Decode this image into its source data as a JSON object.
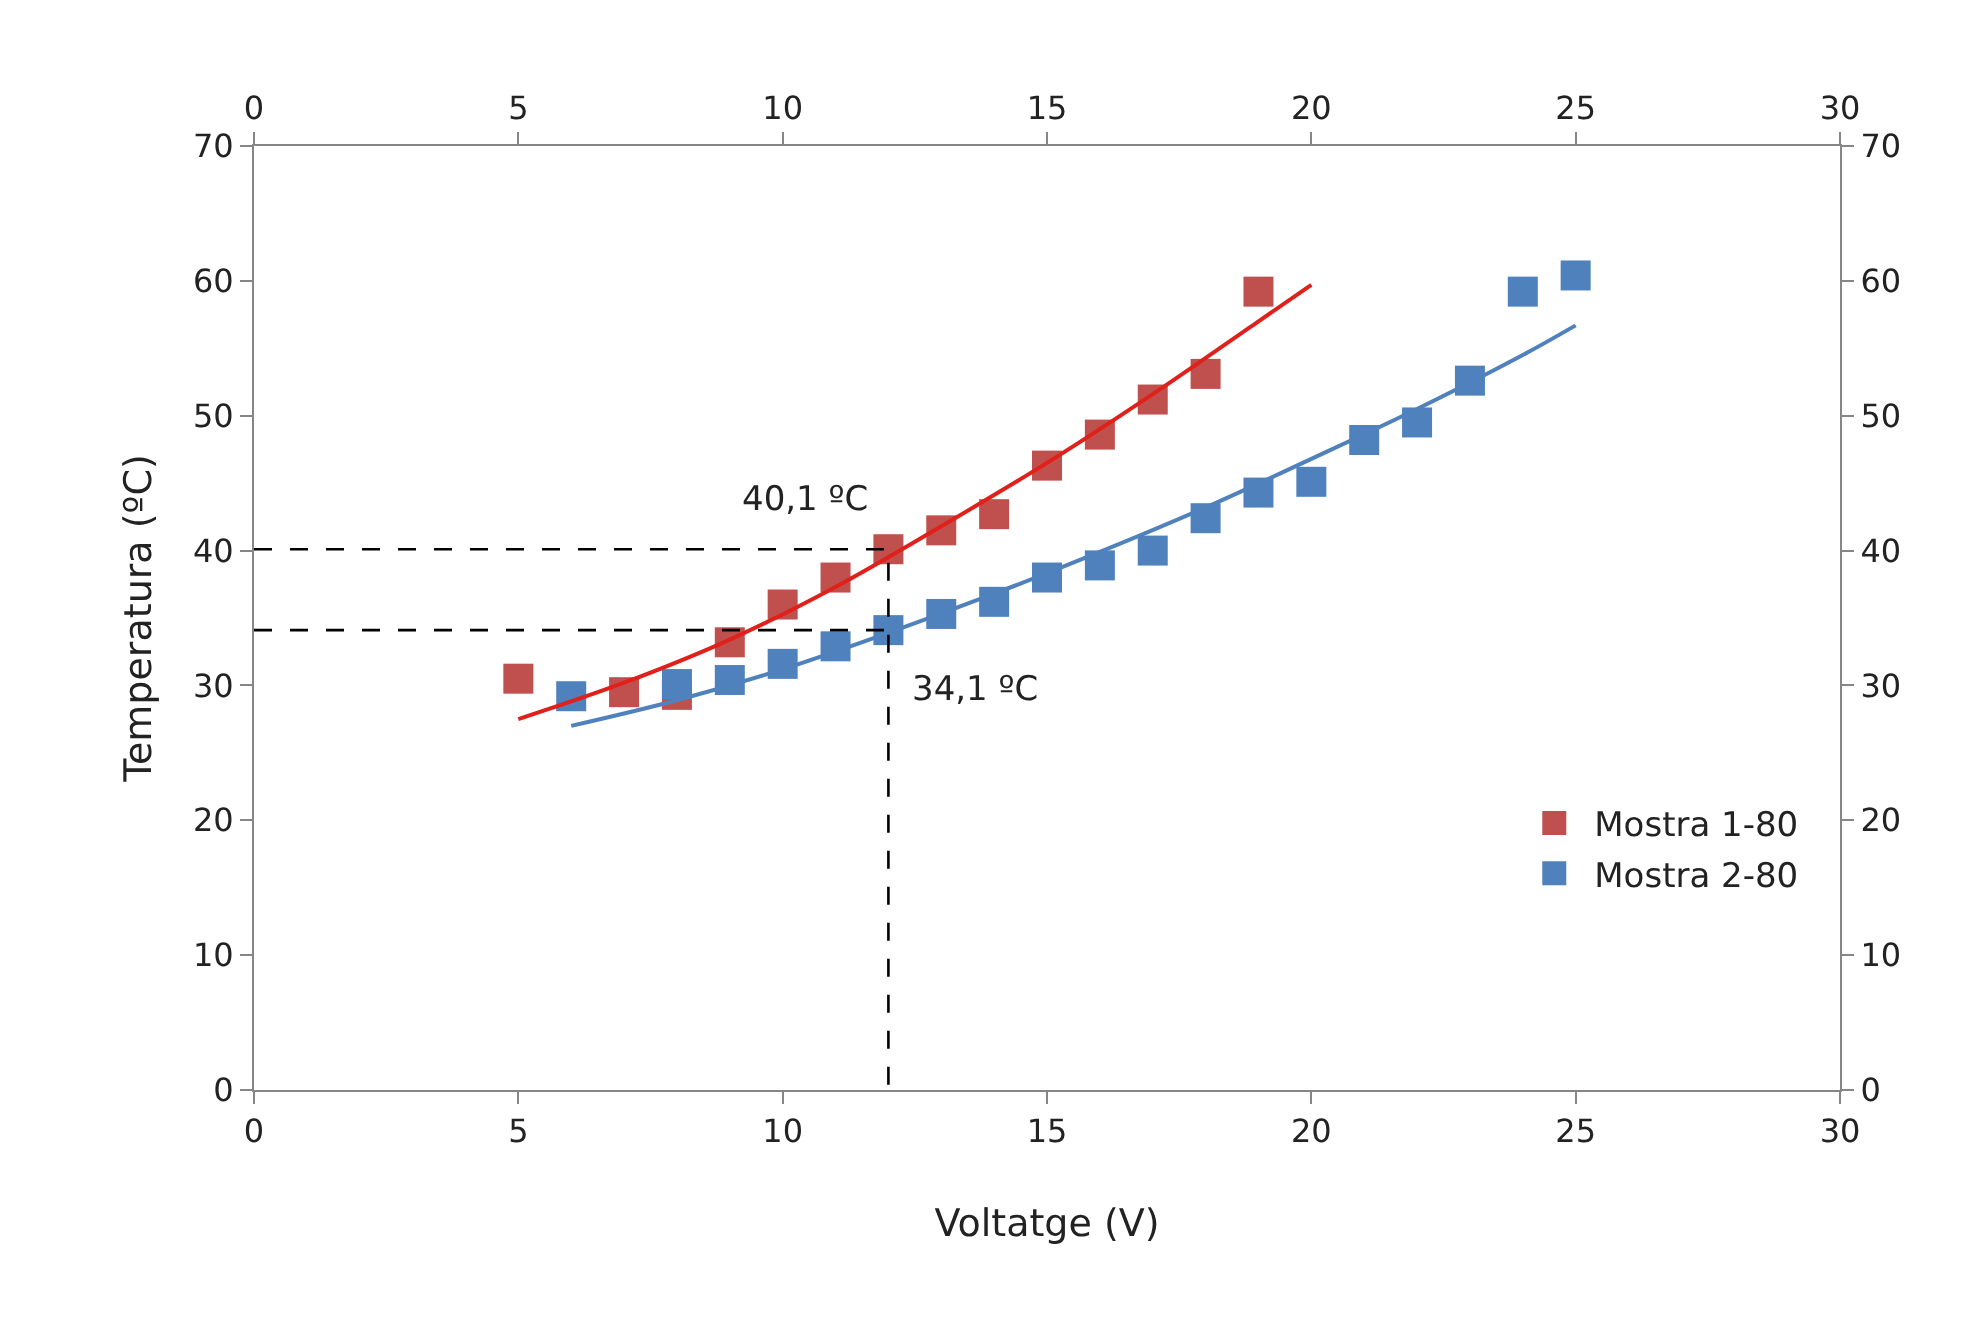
{
  "chart_data": {
    "type": "scatter",
    "xlabel": "Voltatge (V)",
    "ylabel": "Temperatura (ºC)",
    "xlim": [
      0,
      30
    ],
    "xticks": [
      0,
      5,
      10,
      15,
      20,
      25,
      30
    ],
    "x2lim": [
      0,
      30
    ],
    "x2ticks": [
      0,
      5,
      10,
      15,
      20,
      25,
      30
    ],
    "ylim": [
      0,
      70
    ],
    "yticks": [
      0,
      10,
      20,
      30,
      40,
      50,
      60,
      70
    ],
    "y2lim": [
      0,
      70
    ],
    "y2ticks": [
      0,
      10,
      20,
      30,
      40,
      50,
      60,
      70
    ],
    "legend": "bottom right",
    "series": [
      {
        "name": "Mostra 1-80",
        "color": "#c0504d",
        "marker": "square",
        "x": [
          5,
          7,
          8,
          9,
          10,
          11,
          12,
          13,
          14,
          15,
          16,
          17,
          18,
          19
        ],
        "values": [
          30.5,
          29.5,
          29.3,
          33.2,
          36.0,
          38.0,
          40.1,
          41.5,
          42.7,
          46.3,
          48.6,
          51.2,
          53.1,
          59.2
        ]
      },
      {
        "name": "Mostra 2-80",
        "color": "#4f81bd",
        "marker": "square",
        "x": [
          6,
          8,
          9,
          10,
          11,
          12,
          13,
          14,
          15,
          16,
          17,
          18,
          19,
          20,
          21,
          22,
          23,
          24,
          25
        ],
        "values": [
          29.2,
          30.1,
          30.4,
          31.6,
          32.9,
          34.1,
          35.3,
          36.2,
          38.0,
          38.9,
          40.0,
          42.4,
          44.3,
          45.1,
          48.2,
          49.5,
          52.6,
          59.2,
          60.4
        ]
      },
      {
        "type": "line",
        "marker": "none",
        "color": "#e0201b",
        "x": [
          5,
          7,
          9,
          11,
          13,
          15,
          17,
          19,
          20
        ],
        "values": [
          27.5,
          30.2,
          33.4,
          37.3,
          41.8,
          46.5,
          51.6,
          57.0,
          59.7
        ]
      },
      {
        "type": "line",
        "marker": "none",
        "color": "#4f81bd",
        "x": [
          6,
          8,
          10,
          12,
          14,
          16,
          18,
          20,
          22,
          24,
          25
        ],
        "values": [
          27.0,
          28.9,
          31.2,
          33.9,
          36.8,
          39.9,
          43.2,
          46.8,
          50.5,
          54.5,
          56.7
        ]
      },
      {
        "type": "line",
        "marker": "none",
        "color": "#000000",
        "line_style": "dashed",
        "x": [
          0,
          12,
          12
        ],
        "values": [
          40.1,
          40.1,
          0
        ]
      },
      {
        "type": "line",
        "marker": "none",
        "color": "#000000",
        "line_style": "dashed",
        "x": [
          0,
          12
        ],
        "values": [
          34.1,
          34.1
        ]
      }
    ],
    "annotations": [
      {
        "text": "40,1 ºC",
        "x": 12,
        "y": 40.1
      },
      {
        "text": "34,1 ºC",
        "x": 12,
        "y": 34.1
      }
    ]
  }
}
